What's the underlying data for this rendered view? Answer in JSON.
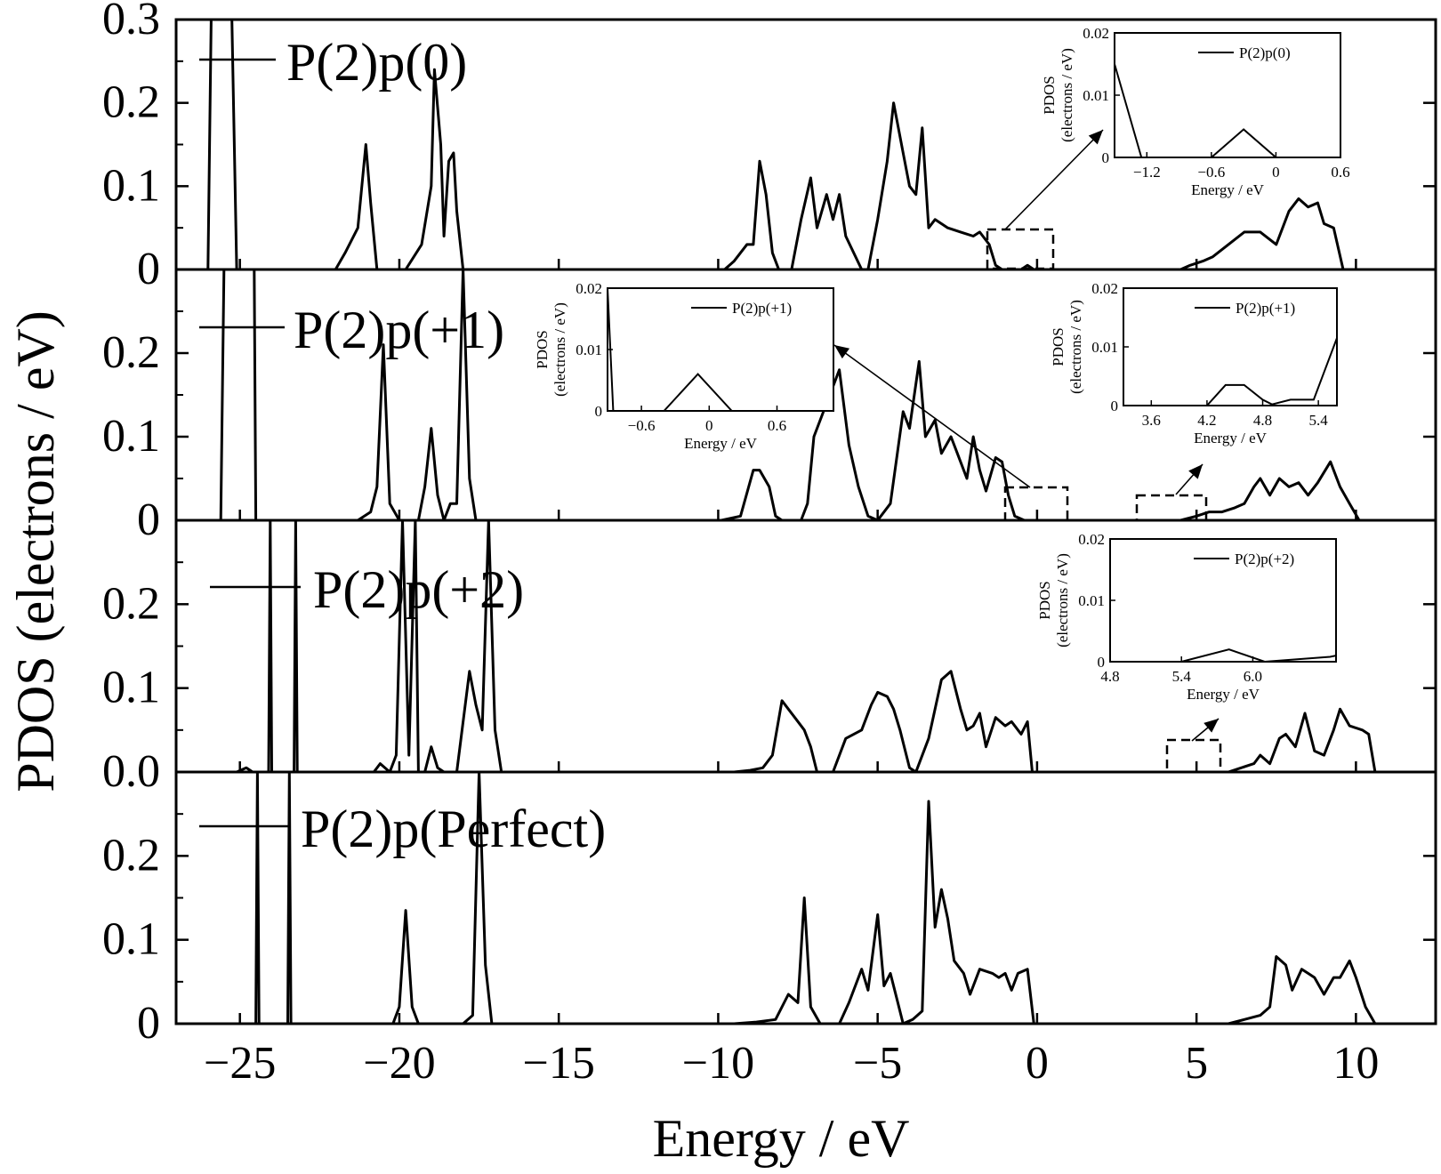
{
  "chart_data": {
    "type": "line",
    "xlabel": "Energy / eV",
    "ylabel": "PDOS (electrons / eV)",
    "xlim": [
      -27,
      12.5
    ],
    "xticks": [
      -25,
      -20,
      -15,
      -10,
      -5,
      0,
      5,
      10
    ],
    "xtick_labels": [
      "−25",
      "−20",
      "−15",
      "−10",
      "−5",
      "0",
      "5",
      "10"
    ],
    "panels": [
      {
        "legend": "P(2)p(0)",
        "ylim": [
          0,
          0.3
        ],
        "yticks": [
          0,
          0.1,
          0.2,
          0.3
        ],
        "ytick_labels": [
          "0",
          "0.1",
          "0.2",
          "0.3"
        ],
        "series": {
          "x": [
            -26.0,
            -25.9,
            -25.85,
            -25.3,
            -25.25,
            -25.1,
            -22.0,
            -21.7,
            -21.3,
            -21.05,
            -20.9,
            -20.7,
            -20.2,
            -19.8,
            -19.3,
            -19.0,
            -18.9,
            -18.7,
            -18.6,
            -18.45,
            -18.3,
            -18.2,
            -18.0,
            -9.8,
            -9.5,
            -9.1,
            -8.9,
            -8.7,
            -8.5,
            -8.3,
            -8.1,
            -7.9,
            -7.7,
            -7.4,
            -7.1,
            -6.9,
            -6.6,
            -6.4,
            -6.2,
            -6.0,
            -5.5,
            -5.3,
            -5.0,
            -4.7,
            -4.5,
            -4.2,
            -4.0,
            -3.8,
            -3.6,
            -3.4,
            -3.2,
            -2.8,
            -2.4,
            -2.0,
            -1.8,
            -1.5,
            -1.3,
            -1.1,
            -0.5,
            -0.3,
            -0.1,
            4.5,
            4.8,
            5.2,
            5.5,
            6.0,
            6.5,
            7.0,
            7.5,
            7.9,
            8.2,
            8.5,
            8.8,
            9.0,
            9.3,
            9.6
          ],
          "y": [
            0,
            0.3,
            0.3,
            0.3,
            0.3,
            0,
            0,
            0.02,
            0.05,
            0.15,
            0.08,
            0,
            0,
            0,
            0.03,
            0.1,
            0.24,
            0.15,
            0.04,
            0.13,
            0.14,
            0.07,
            0,
            0,
            0.01,
            0.03,
            0.03,
            0.13,
            0.09,
            0.02,
            0,
            0,
            0,
            0.06,
            0.11,
            0.05,
            0.09,
            0.06,
            0.09,
            0.04,
            0,
            0,
            0.06,
            0.13,
            0.2,
            0.14,
            0.1,
            0.09,
            0.17,
            0.05,
            0.06,
            0.05,
            0.045,
            0.04,
            0.045,
            0.03,
            0.005,
            0,
            0,
            0.005,
            0,
            0,
            0.005,
            0.01,
            0.015,
            0.03,
            0.045,
            0.045,
            0.03,
            0.07,
            0.085,
            0.075,
            0.08,
            0.055,
            0.05,
            0
          ]
        },
        "insets": [
          {
            "legend": "P(2)p(0)",
            "xlabel": "Energy / eV",
            "ylabel_line1": "PDOS",
            "ylabel_line2": "(electrons / eV)",
            "xlim": [
              -1.5,
              0.6
            ],
            "ylim": [
              0,
              0.02
            ],
            "xtick_labels": [
              "−1.2",
              "−0.6",
              "0",
              "0.6"
            ],
            "xticks": [
              -1.2,
              -0.6,
              0,
              0.6
            ],
            "ytick_labels": [
              "0",
              "0.01",
              "0.02"
            ],
            "yticks": [
              0,
              0.01,
              0.02
            ],
            "x": [
              -1.5,
              -1.25,
              -1.0,
              -0.6,
              -0.3,
              0.0,
              0.6
            ],
            "y": [
              0.015,
              0,
              0,
              0,
              0.0045,
              0,
              0
            ]
          }
        ]
      },
      {
        "legend": "P(2)p(+1)",
        "ylim": [
          0,
          0.3
        ],
        "yticks": [
          0,
          0.1,
          0.2
        ],
        "ytick_labels": [
          "0",
          "0.1",
          "0.2"
        ],
        "series": {
          "x": [
            -25.6,
            -25.5,
            -25.4,
            -24.6,
            -24.55,
            -24.5,
            -21.3,
            -20.9,
            -20.7,
            -20.5,
            -20.3,
            -20.0,
            -19.4,
            -19.2,
            -19.0,
            -18.8,
            -18.6,
            -18.4,
            -18.2,
            -18.0,
            -17.8,
            -17.6,
            -9.9,
            -9.3,
            -8.9,
            -8.7,
            -8.4,
            -8.2,
            -8.0,
            -7.4,
            -7.2,
            -7.0,
            -6.5,
            -6.2,
            -5.9,
            -5.6,
            -5.3,
            -5.0,
            -4.6,
            -4.2,
            -4.0,
            -3.7,
            -3.5,
            -3.2,
            -3.0,
            -2.7,
            -2.5,
            -2.2,
            -2.0,
            -1.8,
            -1.6,
            -1.3,
            -1.1,
            -0.9,
            -0.7,
            -0.4,
            4.5,
            5.0,
            5.4,
            5.8,
            6.2,
            6.5,
            6.8,
            7.0,
            7.3,
            7.6,
            7.9,
            8.2,
            8.5,
            8.8,
            9.2,
            9.5,
            9.8,
            10.1
          ],
          "y": [
            0,
            0.3,
            0.3,
            0.3,
            0.3,
            0,
            0,
            0.01,
            0.04,
            0.21,
            0.02,
            0,
            0,
            0.04,
            0.11,
            0.03,
            0,
            0.02,
            0.02,
            0.3,
            0.05,
            0,
            0,
            0.005,
            0.06,
            0.06,
            0.04,
            0.005,
            0,
            0,
            0.02,
            0.1,
            0.15,
            0.18,
            0.09,
            0.04,
            0.005,
            0,
            0.02,
            0.13,
            0.11,
            0.19,
            0.1,
            0.12,
            0.08,
            0.1,
            0.08,
            0.05,
            0.1,
            0.06,
            0.035,
            0.075,
            0.07,
            0.03,
            0.005,
            0,
            0,
            0.005,
            0.01,
            0.01,
            0.015,
            0.02,
            0.04,
            0.05,
            0.03,
            0.05,
            0.04,
            0.045,
            0.03,
            0.045,
            0.07,
            0.04,
            0.02,
            0
          ]
        },
        "insets": [
          {
            "legend": "P(2)p(+1)",
            "xlabel": "Energy / eV",
            "ylabel_line1": "PDOS",
            "ylabel_line2": "(electrons / eV)",
            "xlim": [
              -0.9,
              1.1
            ],
            "ylim": [
              0,
              0.02
            ],
            "xtick_labels": [
              "−0.6",
              "0",
              "0.6"
            ],
            "xticks": [
              -0.6,
              0,
              0.6
            ],
            "ytick_labels": [
              "0",
              "0.01",
              "0.02"
            ],
            "yticks": [
              0,
              0.01,
              0.02
            ],
            "x": [
              -0.9,
              -0.85,
              -0.5,
              -0.4,
              -0.1,
              0.2,
              1.1
            ],
            "y": [
              0.02,
              0,
              0,
              0,
              0.006,
              0,
              0
            ]
          },
          {
            "legend": "P(2)p(+1)",
            "xlabel": "Energy / eV",
            "ylabel_line1": "PDOS",
            "ylabel_line2": "(electrons / eV)",
            "xlim": [
              3.3,
              5.6
            ],
            "ylim": [
              0,
              0.02
            ],
            "xtick_labels": [
              "3.6",
              "4.2",
              "4.8",
              "5.4"
            ],
            "xticks": [
              3.6,
              4.2,
              4.8,
              5.4
            ],
            "ytick_labels": [
              "0",
              "0.01",
              "0.02"
            ],
            "yticks": [
              0,
              0.01,
              0.02
            ],
            "x": [
              3.3,
              4.2,
              4.4,
              4.6,
              4.8,
              4.9,
              5.1,
              5.35,
              5.6
            ],
            "y": [
              0,
              0,
              0.0035,
              0.0035,
              0.001,
              0.0002,
              0.001,
              0.001,
              0.0115
            ]
          }
        ]
      },
      {
        "legend": "P(2)p(+2)",
        "ylim": [
          0,
          0.3
        ],
        "yticks": [
          0,
          0.1,
          0.2
        ],
        "ytick_labels": [
          "0.0",
          "0.1",
          "0.2"
        ],
        "series": {
          "x": [
            -25.1,
            -24.8,
            -24.6,
            -24.1,
            -24.05,
            -24.0,
            -23.3,
            -23.25,
            -23.2,
            -20.8,
            -20.6,
            -20.3,
            -20.1,
            -19.9,
            -19.7,
            -19.5,
            -19.4,
            -19.2,
            -19.0,
            -18.8,
            -18.6,
            -18.2,
            -17.8,
            -17.6,
            -17.4,
            -17.2,
            -17.0,
            -16.8,
            -9.5,
            -9.0,
            -8.6,
            -8.3,
            -8.0,
            -7.6,
            -7.3,
            -7.1,
            -6.9,
            -6.4,
            -6.0,
            -5.5,
            -5.2,
            -5.0,
            -4.7,
            -4.5,
            -4.3,
            -4.0,
            -3.8,
            -3.4,
            -3.0,
            -2.7,
            -2.4,
            -2.2,
            -2.0,
            -1.8,
            -1.6,
            -1.3,
            -1.0,
            -0.8,
            -0.5,
            -0.3,
            -0.15,
            6.0,
            6.4,
            6.8,
            7.0,
            7.3,
            7.6,
            7.8,
            8.1,
            8.4,
            8.7,
            9.0,
            9.3,
            9.5,
            9.8,
            10.2,
            10.4,
            10.6
          ],
          "y": [
            0,
            0.005,
            0,
            0,
            0.3,
            0,
            0,
            0.3,
            0,
            0,
            0.01,
            0,
            0.02,
            0.3,
            0.02,
            0.3,
            0,
            0,
            0.03,
            0.005,
            0,
            0,
            0.12,
            0.08,
            0.05,
            0.3,
            0.05,
            0,
            0,
            0.002,
            0.005,
            0.02,
            0.085,
            0.065,
            0.05,
            0.03,
            0,
            0,
            0.04,
            0.05,
            0.08,
            0.095,
            0.09,
            0.075,
            0.05,
            0.005,
            0,
            0.04,
            0.11,
            0.12,
            0.075,
            0.05,
            0.055,
            0.07,
            0.03,
            0.065,
            0.055,
            0.06,
            0.045,
            0.06,
            0,
            0,
            0.005,
            0.01,
            0.02,
            0.01,
            0.04,
            0.045,
            0.03,
            0.07,
            0.025,
            0.02,
            0.05,
            0.075,
            0.055,
            0.05,
            0.045,
            0
          ]
        },
        "insets": [
          {
            "legend": "P(2)p(+2)",
            "xlabel": "Energy / eV",
            "ylabel_line1": "PDOS",
            "ylabel_line2": "(electrons / eV)",
            "xlim": [
              4.8,
              6.7
            ],
            "ylim": [
              0,
              0.02
            ],
            "xtick_labels": [
              "4.8",
              "5.4",
              "6.0"
            ],
            "xticks": [
              4.8,
              5.4,
              6.0
            ],
            "ytick_labels": [
              "0",
              "0.01",
              "0.02"
            ],
            "yticks": [
              0,
              0.01,
              0.02
            ],
            "x": [
              4.8,
              5.4,
              5.8,
              6.1,
              6.65,
              6.7
            ],
            "y": [
              0,
              0,
              0.002,
              0,
              0.0008,
              0.001
            ]
          }
        ]
      },
      {
        "legend": "P(2)p(Perfect)",
        "ylim": [
          0,
          0.3
        ],
        "yticks": [
          0,
          0.1,
          0.2
        ],
        "ytick_labels": [
          "0",
          "0.1",
          "0.2"
        ],
        "series": {
          "x": [
            -24.5,
            -24.45,
            -24.4,
            -23.5,
            -23.45,
            -23.4,
            -20.2,
            -20.0,
            -19.8,
            -19.6,
            -19.4,
            -18.0,
            -17.7,
            -17.5,
            -17.3,
            -17.1,
            -9.5,
            -8.8,
            -8.2,
            -7.8,
            -7.5,
            -7.3,
            -7.1,
            -6.8,
            -6.2,
            -5.9,
            -5.5,
            -5.3,
            -5.0,
            -4.8,
            -4.6,
            -4.4,
            -4.2,
            -3.9,
            -3.6,
            -3.4,
            -3.2,
            -3.0,
            -2.8,
            -2.6,
            -2.3,
            -2.1,
            -1.8,
            -1.4,
            -1.2,
            -1.0,
            -0.8,
            -0.6,
            -0.3,
            -0.1,
            6.0,
            6.5,
            7.0,
            7.3,
            7.5,
            7.8,
            8.0,
            8.3,
            8.5,
            8.7,
            9.0,
            9.3,
            9.5,
            9.8,
            10.0,
            10.3,
            10.6
          ],
          "y": [
            0,
            0.3,
            0,
            0,
            0.3,
            0,
            0,
            0.02,
            0.135,
            0.02,
            0,
            0,
            0.01,
            0.3,
            0.07,
            0,
            0,
            0.002,
            0.005,
            0.035,
            0.025,
            0.15,
            0.02,
            0,
            0,
            0.025,
            0.065,
            0.04,
            0.13,
            0.045,
            0.06,
            0.03,
            0,
            0.005,
            0.015,
            0.265,
            0.115,
            0.16,
            0.125,
            0.075,
            0.06,
            0.035,
            0.065,
            0.06,
            0.055,
            0.06,
            0.04,
            0.06,
            0.065,
            0,
            0,
            0.005,
            0.01,
            0.02,
            0.08,
            0.07,
            0.04,
            0.065,
            0.06,
            0.055,
            0.035,
            0.055,
            0.055,
            0.075,
            0.055,
            0.02,
            0
          ]
        },
        "insets": []
      }
    ]
  }
}
